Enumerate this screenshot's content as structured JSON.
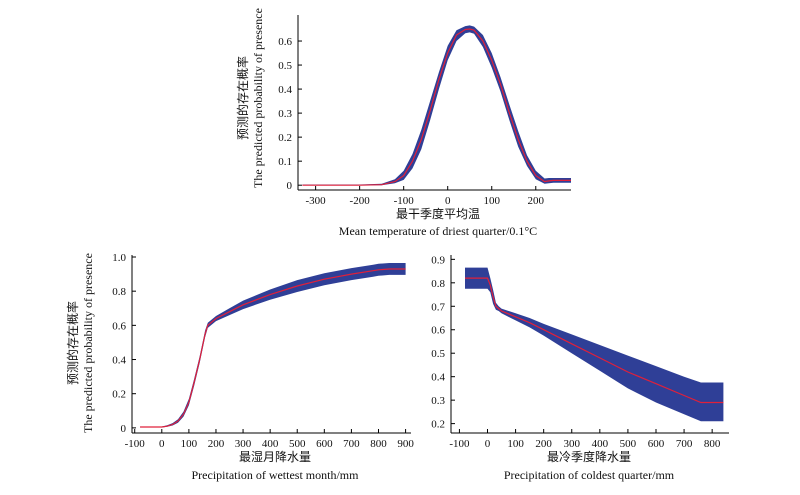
{
  "colors": {
    "band": "#2f3f97",
    "line": "#e0203a",
    "axis": "#000000"
  },
  "ylabel": {
    "zh": "预测的存在概率",
    "en": "The predicted probability of presence"
  },
  "chart_data": [
    {
      "type": "line",
      "id": "driest",
      "xlabel_zh": "最干季度平均温",
      "xlabel_en": "Mean temperature of driest quarter/0.1°C",
      "xlim": [
        -340,
        280
      ],
      "ylim": [
        -0.02,
        0.7
      ],
      "xticks": [
        -300,
        -200,
        -100,
        0,
        100,
        200
      ],
      "yticks": [
        0,
        0.1,
        0.2,
        0.3,
        0.4,
        0.5,
        0.6
      ],
      "ytick_labels": [
        "0",
        "0.1",
        "0.2",
        "0.3",
        "0.4",
        "0.5",
        "0.6"
      ],
      "x": [
        -330,
        -200,
        -150,
        -120,
        -100,
        -80,
        -60,
        -40,
        -20,
        0,
        20,
        40,
        50,
        60,
        80,
        100,
        120,
        140,
        160,
        180,
        200,
        220,
        230,
        240,
        280
      ],
      "mean": [
        0,
        0,
        0.002,
        0.015,
        0.04,
        0.1,
        0.19,
        0.31,
        0.44,
        0.55,
        0.625,
        0.648,
        0.65,
        0.645,
        0.6,
        0.52,
        0.42,
        0.3,
        0.19,
        0.1,
        0.04,
        0.015,
        0.018,
        0.02,
        0.02
      ],
      "upper": [
        0.003,
        0.003,
        0.006,
        0.025,
        0.06,
        0.13,
        0.23,
        0.35,
        0.47,
        0.58,
        0.645,
        0.662,
        0.665,
        0.66,
        0.625,
        0.55,
        0.45,
        0.335,
        0.225,
        0.125,
        0.06,
        0.028,
        0.03,
        0.03,
        0.03
      ],
      "lower": [
        0,
        0,
        0,
        0.008,
        0.022,
        0.07,
        0.15,
        0.27,
        0.4,
        0.52,
        0.6,
        0.632,
        0.636,
        0.63,
        0.575,
        0.49,
        0.39,
        0.27,
        0.16,
        0.08,
        0.025,
        0.006,
        0.008,
        0.01,
        0.01
      ]
    },
    {
      "type": "line",
      "id": "wettest",
      "xlabel_zh": "最湿月降水量",
      "xlabel_en": "Precipitation of wettest month/mm",
      "xlim": [
        -110,
        920
      ],
      "ylim": [
        -0.03,
        1.0
      ],
      "xticks": [
        -100,
        0,
        100,
        200,
        300,
        400,
        500,
        600,
        700,
        800,
        900
      ],
      "yticks": [
        0,
        0.2,
        0.4,
        0.6,
        0.8,
        1.0
      ],
      "ytick_labels": [
        "0",
        "0.2",
        "0.4",
        "0.6",
        "0.8",
        "1.0"
      ],
      "x": [
        -80,
        0,
        20,
        40,
        60,
        80,
        100,
        120,
        140,
        160,
        170,
        200,
        250,
        300,
        400,
        500,
        600,
        700,
        780,
        800,
        840,
        900
      ],
      "mean": [
        0.005,
        0.005,
        0.01,
        0.02,
        0.04,
        0.08,
        0.15,
        0.27,
        0.4,
        0.55,
        0.6,
        0.64,
        0.68,
        0.72,
        0.78,
        0.83,
        0.87,
        0.9,
        0.92,
        0.925,
        0.93,
        0.93
      ],
      "upper": [
        0.008,
        0.008,
        0.015,
        0.028,
        0.05,
        0.095,
        0.17,
        0.29,
        0.42,
        0.57,
        0.615,
        0.655,
        0.7,
        0.745,
        0.81,
        0.865,
        0.905,
        0.935,
        0.955,
        0.96,
        0.965,
        0.965
      ],
      "lower": [
        0.002,
        0.002,
        0.006,
        0.014,
        0.03,
        0.066,
        0.132,
        0.25,
        0.38,
        0.53,
        0.585,
        0.625,
        0.66,
        0.695,
        0.75,
        0.795,
        0.835,
        0.865,
        0.885,
        0.89,
        0.895,
        0.895
      ]
    },
    {
      "type": "line",
      "id": "coldest",
      "xlabel_zh": "最冷季度降水量",
      "xlabel_en": "Precipitation of coldest quarter/mm",
      "xlim": [
        -130,
        860
      ],
      "ylim": [
        0.16,
        0.91
      ],
      "xticks": [
        -100,
        0,
        100,
        200,
        300,
        400,
        500,
        600,
        700,
        800
      ],
      "yticks": [
        0.2,
        0.3,
        0.4,
        0.5,
        0.6,
        0.7,
        0.8,
        0.9
      ],
      "ytick_labels": [
        "0.2",
        "0.3",
        "0.4",
        "0.5",
        "0.6",
        "0.7",
        "0.8",
        "0.9"
      ],
      "x": [
        -80,
        0,
        10,
        20,
        30,
        40,
        50,
        100,
        150,
        200,
        300,
        400,
        500,
        600,
        700,
        760,
        800,
        840
      ],
      "mean": [
        0.82,
        0.82,
        0.79,
        0.74,
        0.7,
        0.69,
        0.68,
        0.655,
        0.63,
        0.6,
        0.54,
        0.48,
        0.42,
        0.37,
        0.32,
        0.29,
        0.29,
        0.29
      ],
      "upper": [
        0.865,
        0.865,
        0.82,
        0.77,
        0.715,
        0.7,
        0.69,
        0.67,
        0.65,
        0.625,
        0.58,
        0.535,
        0.49,
        0.445,
        0.4,
        0.375,
        0.375,
        0.375
      ],
      "lower": [
        0.775,
        0.775,
        0.76,
        0.71,
        0.685,
        0.68,
        0.67,
        0.64,
        0.61,
        0.575,
        0.5,
        0.425,
        0.35,
        0.29,
        0.24,
        0.21,
        0.21,
        0.21
      ]
    }
  ]
}
